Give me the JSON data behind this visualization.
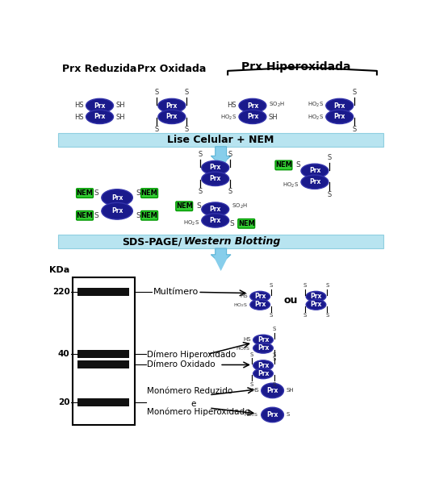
{
  "bg_color": "#ffffff",
  "light_blue_bar": "#b8e4f0",
  "protein_color": "#1a1a8c",
  "protein_edge": "#3333aa",
  "nems_color": "#33cc33",
  "nems_edge": "#009900",
  "gel_band_color": "#111111",
  "arrow_fill": "#87ceeb",
  "arrow_edge": "#5ab4d6",
  "title_top": "Prx Hiperoxidada",
  "label_reduced": "Prx Reduzida",
  "label_oxidized": "Prx Oxidada",
  "bar1_text": "Lise Celular + NEM",
  "kda_label": "KDa",
  "band_220_label": "220",
  "band_40_label": "40",
  "band_20_label": "20",
  "multimero": "Multímero",
  "dimero_hip": "Dímero Hiperoxidado",
  "dimero_ox": "Dímero Oxidado",
  "monomero_red": "Monómero Reduzido",
  "e_text": "e",
  "monomero_hip": "Monómero Hiperoxidado",
  "ou_text": "ou"
}
